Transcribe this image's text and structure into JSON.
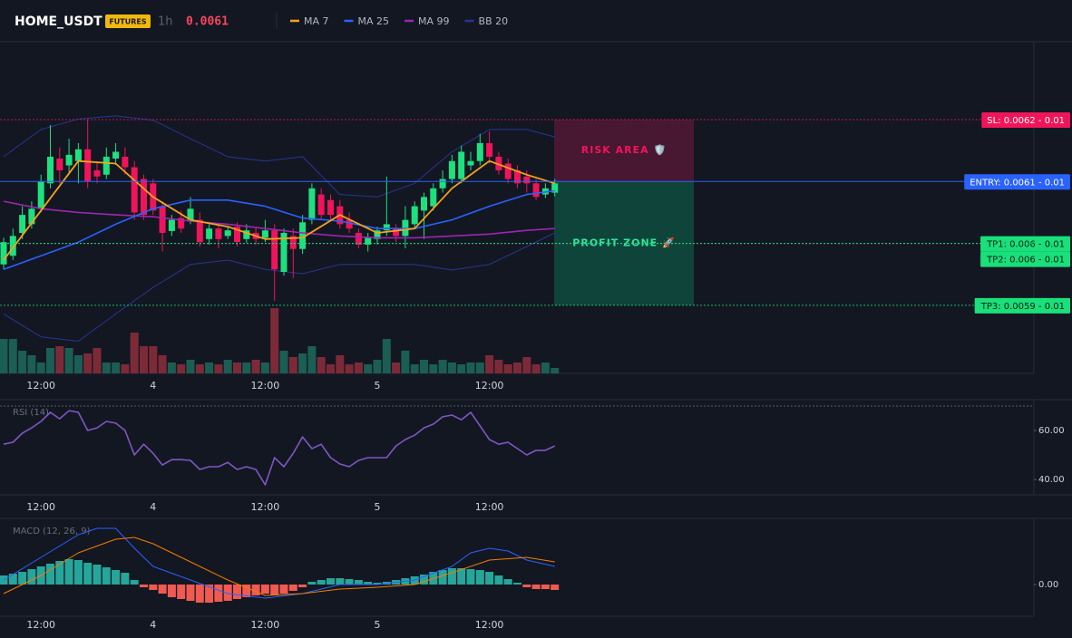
{
  "header": {
    "symbol": "HOME_USDT",
    "badge": "FUTURES",
    "interval": "1h",
    "price": 0.0061,
    "price_color": "#f6465d"
  },
  "chart_data": [
    {
      "type": "candlestick",
      "categories": [
        null,
        null,
        null,
        null,
        "12:00",
        null,
        null,
        null,
        null,
        null,
        null,
        null,
        null,
        null,
        null,
        null,
        "4",
        null,
        null,
        null,
        null,
        null,
        null,
        null,
        null,
        null,
        null,
        null,
        "12:00",
        null,
        null,
        null,
        null,
        null,
        null,
        null,
        null,
        null,
        null,
        null,
        "5",
        null,
        null,
        null,
        null,
        null,
        null,
        null,
        null,
        null,
        null,
        null,
        "12:00",
        null,
        null,
        null,
        null,
        null,
        null,
        null
      ],
      "open": [
        0.005966,
        0.00598,
        0.006017,
        0.006031,
        0.006056,
        0.006097,
        0.006137,
        0.006126,
        0.006133,
        0.006152,
        0.006118,
        0.006111,
        0.006137,
        0.00614,
        0.006123,
        0.006104,
        0.006097,
        0.00606,
        0.00602,
        0.006041,
        0.006038,
        0.006038,
        0.006007,
        0.006024,
        0.006012,
        0.006027,
        0.006007,
        0.006017,
        0.006009,
        0.006021,
        0.005954,
        0.006012,
        0.005991,
        0.006038,
        0.006079,
        0.00607,
        0.00606,
        0.006038,
        0.006017,
        0.005998,
        0.006007,
        0.006021,
        0.006024,
        0.006012,
        0.006031,
        0.006053,
        0.00606,
        0.006089,
        0.006104,
        0.006104,
        0.006126,
        0.006133,
        0.006162,
        0.00614,
        0.006129,
        0.006118,
        0.006108,
        0.006097,
        0.006079,
        0.006082
      ],
      "high": [
        0.006009,
        0.006024,
        0.00606,
        0.006068,
        0.006111,
        0.006191,
        0.006155,
        0.006169,
        0.006162,
        0.006201,
        0.006133,
        0.006155,
        0.006162,
        0.006155,
        0.006133,
        0.006111,
        0.006104,
        0.006068,
        0.006046,
        0.006053,
        0.006075,
        0.00605,
        0.006031,
        0.006031,
        0.006027,
        0.006034,
        0.006031,
        0.006027,
        0.006038,
        0.006031,
        0.006024,
        0.006024,
        0.006046,
        0.006097,
        0.006089,
        0.006079,
        0.00607,
        0.00605,
        0.006024,
        0.006017,
        0.006027,
        0.006108,
        0.006031,
        0.00606,
        0.006068,
        0.006082,
        0.006097,
        0.006118,
        0.006143,
        0.006158,
        0.006148,
        0.006177,
        0.006181,
        0.006148,
        0.006137,
        0.006126,
        0.006118,
        0.006104,
        0.006097,
        0.006104
      ],
      "low": [
        0.005958,
        0.005973,
        0.006007,
        0.006024,
        0.00605,
        0.006089,
        0.006097,
        0.006111,
        0.006097,
        0.006089,
        0.006097,
        0.006104,
        0.006127,
        0.006111,
        0.006038,
        0.006038,
        0.006046,
        0.005987,
        0.006012,
        0.006017,
        0.006031,
        0.005995,
        0.005998,
        0.005992,
        0.006007,
        0.005995,
        0.006001,
        0.005998,
        0.006002,
        0.005907,
        0.005948,
        0.005944,
        0.005983,
        0.006031,
        0.006038,
        0.006035,
        0.006024,
        0.006017,
        0.005992,
        0.005987,
        0.005998,
        0.006012,
        0.006002,
        0.005992,
        0.006024,
        0.006007,
        0.006053,
        0.006082,
        0.006097,
        0.006097,
        0.006118,
        0.006126,
        0.006129,
        0.006111,
        0.006097,
        0.006089,
        0.006082,
        0.00607,
        0.006073,
        0.006076
      ],
      "close": [
        0.006002,
        0.006012,
        0.006046,
        0.006056,
        0.0061,
        0.00614,
        0.006118,
        0.006143,
        0.006152,
        0.0061,
        0.006108,
        0.00614,
        0.006148,
        0.006123,
        0.00605,
        0.006046,
        0.006053,
        0.006017,
        0.006038,
        0.006024,
        0.006056,
        0.006002,
        0.006024,
        0.006007,
        0.006021,
        0.006002,
        0.006021,
        0.006007,
        0.006021,
        0.005958,
        0.006017,
        0.005991,
        0.006034,
        0.006089,
        0.006046,
        0.006046,
        0.006031,
        0.006024,
        0.005998,
        0.006009,
        0.006021,
        0.006031,
        0.006012,
        0.006038,
        0.00606,
        0.006075,
        0.006089,
        0.006104,
        0.006133,
        0.006148,
        0.006133,
        0.006162,
        0.00614,
        0.006118,
        0.006104,
        0.006097,
        0.006097,
        0.006075,
        0.006089,
        0.006097
      ],
      "up_color": "#1fe07f",
      "down_color": "#f0145a",
      "ylim": [
        0.00579,
        0.00632
      ],
      "volume": {
        "values": [
          38,
          38,
          25,
          20,
          12,
          28,
          30,
          28,
          20,
          22,
          28,
          12,
          12,
          10,
          45,
          30,
          30,
          20,
          12,
          10,
          15,
          10,
          12,
          10,
          15,
          12,
          12,
          15,
          12,
          72,
          25,
          18,
          22,
          30,
          18,
          10,
          20,
          10,
          12,
          10,
          15,
          38,
          12,
          25,
          10,
          15,
          10,
          15,
          12,
          10,
          12,
          12,
          20,
          15,
          10,
          12,
          18,
          10,
          12,
          6
        ],
        "ylim": [
          0,
          140
        ],
        "up_color": "#1b5e53",
        "down_color": "#7d2a38"
      },
      "overlays": [
        {
          "name": "MA 7",
          "color": "#f7a21b",
          "x": [
            0,
            4,
            8,
            12,
            16,
            20,
            24,
            28,
            32,
            36,
            40,
            44,
            48,
            52,
            56,
            59
          ],
          "values": [
            0.005973,
            0.006053,
            0.006133,
            0.006129,
            0.006075,
            0.006038,
            0.006027,
            0.006007,
            0.006009,
            0.006046,
            0.006017,
            0.006024,
            0.006089,
            0.006133,
            0.006111,
            0.006097
          ]
        },
        {
          "name": "MA 25",
          "color": "#2962ff",
          "x": [
            0,
            4,
            8,
            12,
            16,
            20,
            24,
            28,
            32,
            36,
            40,
            44,
            48,
            52,
            56,
            59
          ],
          "values": [
            0.005958,
            0.00598,
            0.006002,
            0.006031,
            0.006056,
            0.00607,
            0.00607,
            0.00606,
            0.006041,
            0.006036,
            0.006024,
            0.006024,
            0.006038,
            0.00606,
            0.006079,
            0.006085
          ]
        },
        {
          "name": "MA 99",
          "color": "#9c27b0",
          "x": [
            0,
            4,
            8,
            12,
            16,
            20,
            24,
            28,
            32,
            36,
            40,
            44,
            48,
            52,
            56,
            59
          ],
          "values": [
            0.006068,
            0.006056,
            0.00605,
            0.006046,
            0.006043,
            0.006036,
            0.006031,
            0.006024,
            0.006017,
            0.006012,
            0.006009,
            0.006009,
            0.006012,
            0.006015,
            0.006021,
            0.006024
          ]
        },
        {
          "name": "BB 20",
          "color": "#283593",
          "x": [
            0,
            4,
            8,
            12,
            16,
            20,
            24,
            28,
            32,
            36,
            40,
            44,
            48,
            52,
            56,
            59
          ],
          "upper": [
            0.00614,
            0.006184,
            0.006201,
            0.006206,
            0.006199,
            0.006169,
            0.00614,
            0.006133,
            0.00614,
            0.006079,
            0.006075,
            0.006097,
            0.006148,
            0.006184,
            0.006184,
            0.006172
          ],
          "lower": [
            0.005886,
            0.005849,
            0.005842,
            0.005886,
            0.005929,
            0.005966,
            0.005973,
            0.005958,
            0.005951,
            0.005966,
            0.005966,
            0.005966,
            0.005957,
            0.005966,
            0.005995,
            0.006017
          ]
        }
      ],
      "levels": [
        {
          "label": "SL: 0.0062 - 0.01",
          "value": 0.0062,
          "color": "#f0155a",
          "text_color": "#ffffff",
          "style": "dotted"
        },
        {
          "label": "ENTRY: 0.0061 - 0.01",
          "value": 0.0061,
          "color": "#2962ff",
          "text_color": "#ffffff",
          "style": "solid"
        },
        {
          "label": "TP1: 0.006 - 0.01",
          "value": 0.006,
          "color": "#19e07a",
          "text_color": "#0b1a12",
          "style": "dotted"
        },
        {
          "label": "TP2: 0.006 - 0.01",
          "value": 0.006,
          "color": "#19e07a",
          "text_color": "#0b1a12",
          "style": "dotted"
        },
        {
          "label": "TP3: 0.0059 - 0.01",
          "value": 0.0059,
          "color": "#19e07a",
          "text_color": "#0b1a12",
          "style": "dotted"
        }
      ],
      "zones": [
        {
          "label": "RISK AREA 🛡️",
          "range": [
            0.0062,
            0.0061
          ],
          "color": "#c2185b",
          "text_color": "#f0145a"
        },
        {
          "label": "PROFIT ZONE 🚀",
          "range": [
            0.0061,
            0.0059
          ],
          "color": "#0b8a62",
          "text_color": "#2ee59d"
        }
      ]
    },
    {
      "type": "line",
      "title": "RSI (14)",
      "color": "#7e57c2",
      "values": [
        54.4,
        55.2,
        58.9,
        61.1,
        63.7,
        67.4,
        64.8,
        68.1,
        67.4,
        60,
        61.1,
        63.7,
        63,
        60,
        50,
        54.4,
        50.7,
        45.9,
        48.1,
        48.1,
        47.8,
        44.1,
        45.2,
        45.2,
        47,
        44.1,
        45.2,
        44.1,
        37.8,
        48.9,
        45.2,
        50.7,
        57.4,
        52.6,
        54.4,
        48.9,
        46.3,
        45.2,
        47.8,
        48.9,
        48.9,
        48.9,
        53.7,
        56.3,
        58.1,
        61.1,
        62.6,
        65.6,
        66.3,
        64.4,
        67.4,
        61.9,
        56.3,
        54.4,
        55.2,
        52.6,
        50,
        51.9,
        51.9,
        53.7
      ],
      "ylim": [
        34.1,
        72.6
      ],
      "yticks": [
        {
          "value": 40,
          "label": "40.00"
        },
        {
          "value": 60,
          "label": "60.00"
        }
      ],
      "overbought": 70
    },
    {
      "type": "macd",
      "title": "MACD (12, 26, 9)",
      "histogram": [
        10,
        12,
        14,
        17,
        20,
        23,
        26,
        28,
        27,
        24,
        22,
        19,
        16,
        13,
        5,
        -3,
        -6,
        -10,
        -14,
        -16,
        -18,
        -20,
        -20,
        -19,
        -18,
        -16,
        -14,
        -12,
        -10,
        -12,
        -10,
        -7,
        -3,
        3,
        5,
        7,
        7,
        6,
        5,
        3,
        2,
        3,
        5,
        7,
        9,
        11,
        14,
        16,
        18,
        18,
        17,
        16,
        14,
        10,
        6,
        2,
        -3,
        -5,
        -5,
        -6
      ],
      "up_color": "#26a69a",
      "down_color": "#f05a50",
      "macd_line": {
        "color": "#2962ff",
        "x": [
          0,
          4,
          8,
          10,
          12,
          14,
          16,
          20,
          24,
          28,
          32,
          36,
          40,
          44,
          48,
          50,
          52,
          54,
          56,
          59
        ],
        "values": [
          5,
          30,
          55,
          62,
          62,
          40,
          20,
          5,
          -10,
          -15,
          -10,
          0,
          0,
          5,
          20,
          35,
          40,
          37,
          27,
          20
        ]
      },
      "signal_line": {
        "color": "#f57c00",
        "x": [
          0,
          4,
          8,
          12,
          14,
          16,
          20,
          24,
          28,
          32,
          36,
          40,
          44,
          48,
          52,
          56,
          59
        ],
        "values": [
          -10,
          10,
          35,
          50,
          52,
          45,
          25,
          5,
          -12,
          -10,
          -5,
          -3,
          0,
          13,
          27,
          30,
          25
        ]
      },
      "ylim": [
        -35,
        72
      ],
      "yticks": [
        {
          "value": 0,
          "label": "0.00"
        }
      ]
    }
  ]
}
